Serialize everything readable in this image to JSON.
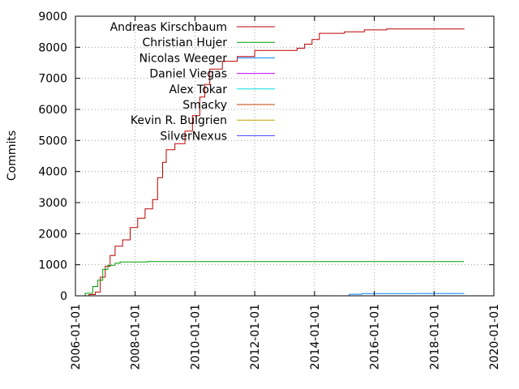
{
  "chart_data": {
    "type": "line",
    "title": "",
    "xlabel": "",
    "ylabel": "Commits",
    "xlim": [
      "2006-01-01",
      "2020-01-01"
    ],
    "ylim": [
      0,
      9000
    ],
    "y_ticks": [
      0,
      1000,
      2000,
      3000,
      4000,
      5000,
      6000,
      7000,
      8000,
      9000
    ],
    "x_ticks": [
      "2006-01-01",
      "2008-01-01",
      "2010-01-01",
      "2012-01-01",
      "2014-01-01",
      "2016-01-01",
      "2018-01-01",
      "2020-01-01"
    ],
    "grid": true,
    "legend_position": "top-left",
    "series": [
      {
        "name": "Andreas Kirschbaum",
        "color": "#c00000",
        "points": [
          [
            "2006-05-01",
            0
          ],
          [
            "2006-06-15",
            40
          ],
          [
            "2006-09-01",
            120
          ],
          [
            "2006-11-01",
            600
          ],
          [
            "2007-01-01",
            950
          ],
          [
            "2007-03-01",
            1300
          ],
          [
            "2007-05-01",
            1600
          ],
          [
            "2007-08-01",
            1800
          ],
          [
            "2007-11-01",
            2200
          ],
          [
            "2008-02-01",
            2500
          ],
          [
            "2008-05-01",
            2800
          ],
          [
            "2008-08-01",
            3100
          ],
          [
            "2008-10-01",
            3800
          ],
          [
            "2008-12-01",
            4300
          ],
          [
            "2009-01-15",
            4700
          ],
          [
            "2009-05-01",
            4900
          ],
          [
            "2009-09-01",
            5300
          ],
          [
            "2009-12-01",
            5800
          ],
          [
            "2010-03-01",
            6400
          ],
          [
            "2010-05-01",
            6800
          ],
          [
            "2010-07-01",
            7300
          ],
          [
            "2010-12-01",
            7550
          ],
          [
            "2011-06-01",
            7700
          ],
          [
            "2012-01-01",
            7900
          ],
          [
            "2013-06-01",
            7970
          ],
          [
            "2013-09-01",
            8100
          ],
          [
            "2013-12-01",
            8250
          ],
          [
            "2014-03-01",
            8450
          ],
          [
            "2015-01-01",
            8500
          ],
          [
            "2015-09-01",
            8560
          ],
          [
            "2016-06-01",
            8590
          ],
          [
            "2019-01-01",
            8600
          ]
        ]
      },
      {
        "name": "Christian Hujer",
        "color": "#00a000",
        "points": [
          [
            "2006-04-01",
            0
          ],
          [
            "2006-05-01",
            80
          ],
          [
            "2006-08-01",
            300
          ],
          [
            "2006-10-01",
            500
          ],
          [
            "2006-12-01",
            850
          ],
          [
            "2007-02-01",
            980
          ],
          [
            "2007-05-01",
            1050
          ],
          [
            "2007-07-01",
            1090
          ],
          [
            "2008-06-01",
            1100
          ],
          [
            "2019-01-01",
            1100
          ]
        ]
      },
      {
        "name": "Nicolas Weeger",
        "color": "#0080ff",
        "points": [
          [
            "2006-05-01",
            0
          ],
          [
            "2015-01-01",
            0
          ],
          [
            "2015-03-01",
            50
          ],
          [
            "2015-08-01",
            70
          ],
          [
            "2017-06-01",
            75
          ],
          [
            "2019-01-01",
            80
          ]
        ]
      },
      {
        "name": "Daniel Viegas",
        "color": "#c000ff",
        "points": [
          [
            "2006-05-01",
            0
          ],
          [
            "2019-01-01",
            10
          ]
        ]
      },
      {
        "name": "Alex Tokar",
        "color": "#00e0e0",
        "points": [
          [
            "2006-05-01",
            0
          ],
          [
            "2019-01-01",
            5
          ]
        ]
      },
      {
        "name": "Smacky",
        "color": "#c04000",
        "points": [
          [
            "2006-05-01",
            0
          ],
          [
            "2019-01-01",
            5
          ]
        ]
      },
      {
        "name": "Kevin R. Bulgrien",
        "color": "#c0a000",
        "points": [
          [
            "2006-05-01",
            0
          ],
          [
            "2019-01-01",
            5
          ]
        ]
      },
      {
        "name": "SilverNexus",
        "color": "#4040ff",
        "points": [
          [
            "2006-05-01",
            0
          ],
          [
            "2019-01-01",
            5
          ]
        ]
      }
    ]
  }
}
